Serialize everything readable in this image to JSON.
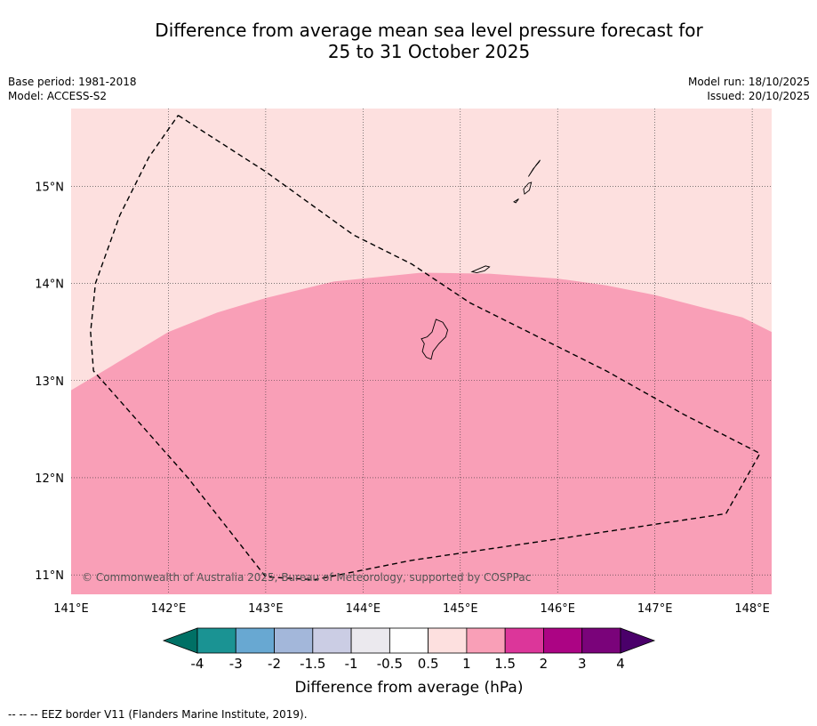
{
  "header": {
    "title_line1": "Difference from average mean sea level pressure forecast for",
    "title_line2": "25 to 31 October 2025",
    "base_period": "Base period: 1981-2018",
    "model": "Model: ACCESS-S2",
    "model_run": "Model run: 18/10/2025",
    "issued": "Issued: 20/10/2025"
  },
  "map": {
    "lon_range": [
      141.0,
      148.2
    ],
    "lat_range": [
      10.8,
      15.8
    ],
    "lon_ticks": [
      {
        "value": 141,
        "label": "141°E"
      },
      {
        "value": 142,
        "label": "142°E"
      },
      {
        "value": 143,
        "label": "143°E"
      },
      {
        "value": 144,
        "label": "144°E"
      },
      {
        "value": 145,
        "label": "145°E"
      },
      {
        "value": 146,
        "label": "146°E"
      },
      {
        "value": 147,
        "label": "147°E"
      },
      {
        "value": 148,
        "label": "148°E"
      }
    ],
    "lat_ticks": [
      {
        "value": 15,
        "label": "15°N"
      },
      {
        "value": 14,
        "label": "14°N"
      },
      {
        "value": 13,
        "label": "13°N"
      },
      {
        "value": 12,
        "label": "12°N"
      },
      {
        "value": 11,
        "label": "11°N"
      }
    ],
    "background_class": {
      "range": "0.5 to 1",
      "color": "#fde0df"
    },
    "contour_class": {
      "range": "1 to 1.5",
      "color": "#f99fb7"
    },
    "contour_boundary": [
      [
        141.0,
        12.9
      ],
      [
        141.5,
        13.2
      ],
      [
        142.0,
        13.5
      ],
      [
        142.5,
        13.7
      ],
      [
        143.0,
        13.85
      ],
      [
        143.7,
        14.02
      ],
      [
        144.6,
        14.11
      ],
      [
        145.3,
        14.1
      ],
      [
        146.0,
        14.05
      ],
      [
        146.5,
        13.98
      ],
      [
        147.0,
        13.88
      ],
      [
        147.5,
        13.75
      ],
      [
        147.9,
        13.65
      ],
      [
        148.2,
        13.5
      ]
    ],
    "eez_border": [
      [
        142.1,
        15.73
      ],
      [
        143.0,
        15.15
      ],
      [
        143.9,
        14.5
      ],
      [
        144.5,
        14.2
      ],
      [
        145.1,
        13.8
      ],
      [
        145.7,
        13.5
      ],
      [
        146.5,
        13.1
      ],
      [
        147.3,
        12.65
      ],
      [
        148.08,
        12.25
      ],
      [
        147.73,
        11.63
      ],
      [
        146.0,
        11.37
      ],
      [
        144.5,
        11.15
      ],
      [
        143.5,
        10.95
      ],
      [
        143.0,
        10.98
      ],
      [
        142.2,
        12.0
      ],
      [
        141.23,
        13.1
      ],
      [
        141.2,
        13.5
      ],
      [
        141.25,
        14.0
      ],
      [
        141.5,
        14.7
      ],
      [
        141.8,
        15.3
      ],
      [
        142.1,
        15.73
      ]
    ],
    "islands": [
      [
        [
          144.75,
          13.63
        ],
        [
          144.82,
          13.6
        ],
        [
          144.87,
          13.52
        ],
        [
          144.85,
          13.45
        ],
        [
          144.78,
          13.38
        ],
        [
          144.72,
          13.3
        ],
        [
          144.7,
          13.22
        ],
        [
          144.65,
          13.24
        ],
        [
          144.61,
          13.3
        ],
        [
          144.63,
          13.38
        ],
        [
          144.6,
          13.43
        ],
        [
          144.66,
          13.45
        ],
        [
          144.71,
          13.5
        ],
        [
          144.75,
          13.63
        ]
      ],
      [
        [
          145.12,
          14.12
        ],
        [
          145.26,
          14.18
        ],
        [
          145.3,
          14.17
        ],
        [
          145.25,
          14.13
        ],
        [
          145.17,
          14.11
        ],
        [
          145.12,
          14.12
        ]
      ],
      [
        [
          145.65,
          14.97
        ],
        [
          145.7,
          15.03
        ],
        [
          145.73,
          15.04
        ],
        [
          145.71,
          14.96
        ],
        [
          145.66,
          14.92
        ],
        [
          145.65,
          14.97
        ]
      ],
      [
        [
          145.7,
          15.1
        ],
        [
          145.78,
          15.22
        ],
        [
          145.82,
          15.27
        ],
        [
          145.81,
          15.25
        ],
        [
          145.75,
          15.18
        ],
        [
          145.7,
          15.1
        ]
      ],
      [
        [
          145.55,
          14.84
        ],
        [
          145.6,
          14.87
        ],
        [
          145.57,
          14.83
        ],
        [
          145.55,
          14.84
        ]
      ]
    ],
    "copyright": "© Commonwealth of Australia 2025, Bureau of Meteorology, supported by COSPPac"
  },
  "colorbar": {
    "colors": [
      "#007065",
      "#1a9393",
      "#68a8d2",
      "#a3b7da",
      "#cbcde4",
      "#ebe9ee",
      "#ffffff",
      "#fde0df",
      "#f99fb7",
      "#dc369a",
      "#ac0484",
      "#7a037a",
      "#4a006a"
    ],
    "labels": [
      "-4",
      "-3",
      "-2",
      "-1.5",
      "-1",
      "-0.5",
      "0.5",
      "1",
      "1.5",
      "2",
      "3",
      "4"
    ],
    "title": "Difference from average (hPa)"
  },
  "footer": {
    "legend_symbol": "--  --  --",
    "legend_text": "EEZ border V11 (Flanders Marine Institute, 2019)."
  }
}
